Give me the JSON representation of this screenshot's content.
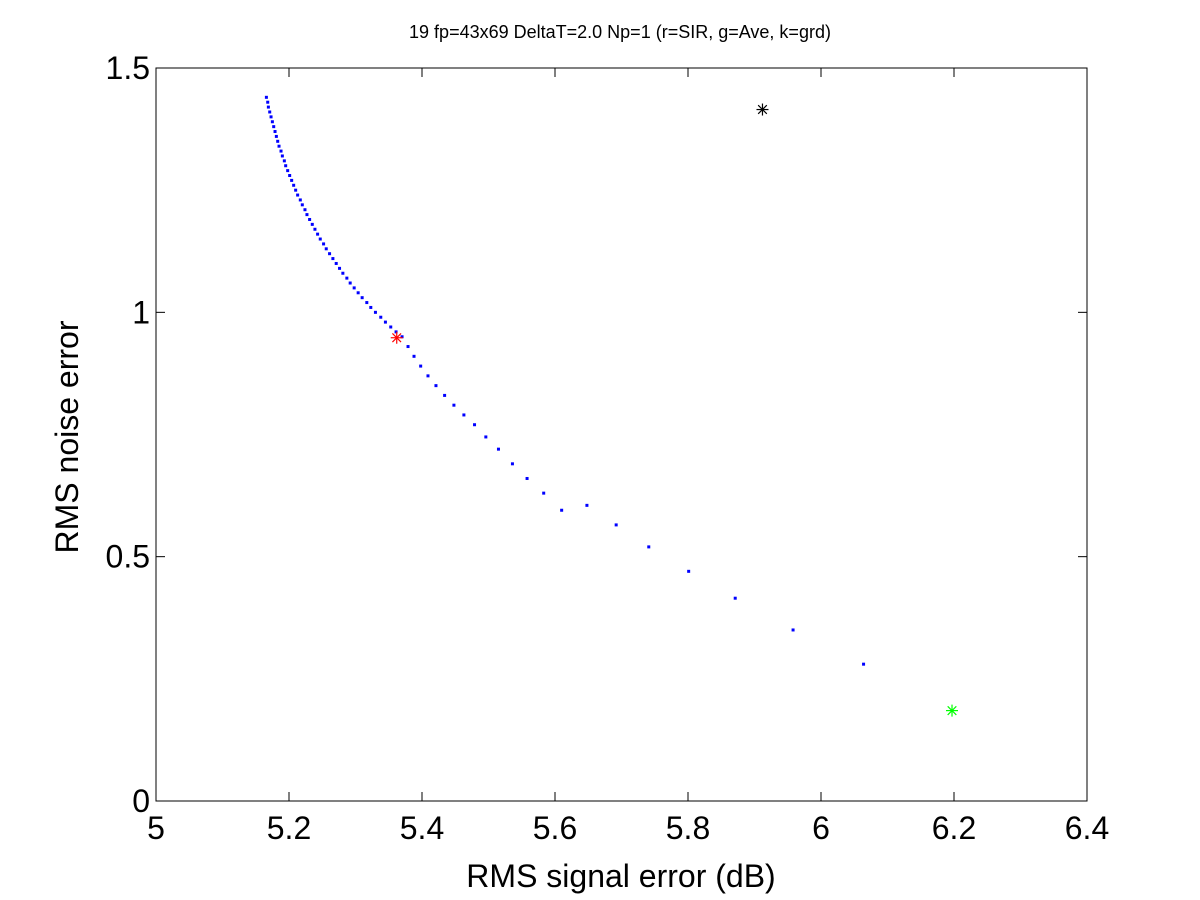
{
  "chart_data": {
    "type": "scatter",
    "title": "19 fp=43x69 DeltaT=2.0 Np=1 (r=SIR, g=Ave, k=grd)",
    "xlabel": "RMS signal error (dB)",
    "ylabel": "RMS noise error",
    "xlim": [
      5,
      6.4
    ],
    "ylim": [
      0,
      1.5
    ],
    "xticks": [
      5,
      5.2,
      5.4,
      5.6,
      5.8,
      6,
      6.2,
      6.4
    ],
    "xtick_labels": [
      "5",
      "5.2",
      "5.4",
      "5.6",
      "5.8",
      "6",
      "6.2",
      "6.4"
    ],
    "yticks": [
      0,
      0.5,
      1,
      1.5
    ],
    "ytick_labels": [
      "0",
      "0.5",
      "1",
      "1.5"
    ],
    "grid": false,
    "legend": "none",
    "series": [
      {
        "marker": "dot",
        "color": "#0000ff",
        "points": [
          [
            5.166,
            1.44
          ],
          [
            5.168,
            1.43
          ],
          [
            5.169,
            1.42
          ],
          [
            5.171,
            1.41
          ],
          [
            5.173,
            1.4
          ],
          [
            5.175,
            1.39
          ],
          [
            5.177,
            1.38
          ],
          [
            5.179,
            1.37
          ],
          [
            5.181,
            1.36
          ],
          [
            5.183,
            1.35
          ],
          [
            5.185,
            1.34
          ],
          [
            5.188,
            1.33
          ],
          [
            5.19,
            1.32
          ],
          [
            5.193,
            1.31
          ],
          [
            5.195,
            1.3
          ],
          [
            5.198,
            1.29
          ],
          [
            5.201,
            1.28
          ],
          [
            5.204,
            1.27
          ],
          [
            5.207,
            1.26
          ],
          [
            5.21,
            1.25
          ],
          [
            5.213,
            1.24
          ],
          [
            5.217,
            1.23
          ],
          [
            5.22,
            1.22
          ],
          [
            5.224,
            1.21
          ],
          [
            5.227,
            1.2
          ],
          [
            5.231,
            1.19
          ],
          [
            5.235,
            1.18
          ],
          [
            5.239,
            1.17
          ],
          [
            5.243,
            1.16
          ],
          [
            5.247,
            1.15
          ],
          [
            5.252,
            1.14
          ],
          [
            5.256,
            1.13
          ],
          [
            5.261,
            1.12
          ],
          [
            5.266,
            1.11
          ],
          [
            5.271,
            1.1
          ],
          [
            5.276,
            1.09
          ],
          [
            5.281,
            1.08
          ],
          [
            5.287,
            1.07
          ],
          [
            5.292,
            1.06
          ],
          [
            5.298,
            1.05
          ],
          [
            5.304,
            1.04
          ],
          [
            5.31,
            1.03
          ],
          [
            5.317,
            1.02
          ],
          [
            5.323,
            1.01
          ],
          [
            5.33,
            1.0
          ],
          [
            5.338,
            0.99
          ],
          [
            5.345,
            0.98
          ],
          [
            5.353,
            0.97
          ],
          [
            5.361,
            0.96
          ],
          [
            5.37,
            0.95
          ],
          [
            5.379,
            0.93
          ],
          [
            5.388,
            0.91
          ],
          [
            5.398,
            0.89
          ],
          [
            5.409,
            0.87
          ],
          [
            5.421,
            0.85
          ],
          [
            5.434,
            0.83
          ],
          [
            5.448,
            0.81
          ],
          [
            5.463,
            0.79
          ],
          [
            5.479,
            0.77
          ],
          [
            5.496,
            0.745
          ],
          [
            5.515,
            0.72
          ],
          [
            5.536,
            0.69
          ],
          [
            5.558,
            0.66
          ],
          [
            5.583,
            0.63
          ],
          [
            5.61,
            0.595
          ],
          [
            5.648,
            0.605
          ],
          [
            5.692,
            0.565
          ],
          [
            5.741,
            0.52
          ],
          [
            5.801,
            0.47
          ],
          [
            5.871,
            0.415
          ],
          [
            5.958,
            0.35
          ],
          [
            6.064,
            0.28
          ]
        ]
      },
      {
        "name": "r=SIR",
        "marker": "asterisk",
        "color": "#ff0000",
        "points": [
          [
            5.362,
            0.948
          ]
        ]
      },
      {
        "name": "g=Ave",
        "marker": "asterisk",
        "color": "#00ff00",
        "points": [
          [
            6.197,
            0.185
          ]
        ]
      },
      {
        "name": "k=grd",
        "marker": "asterisk",
        "color": "#000000",
        "points": [
          [
            5.912,
            1.415
          ]
        ]
      }
    ]
  }
}
